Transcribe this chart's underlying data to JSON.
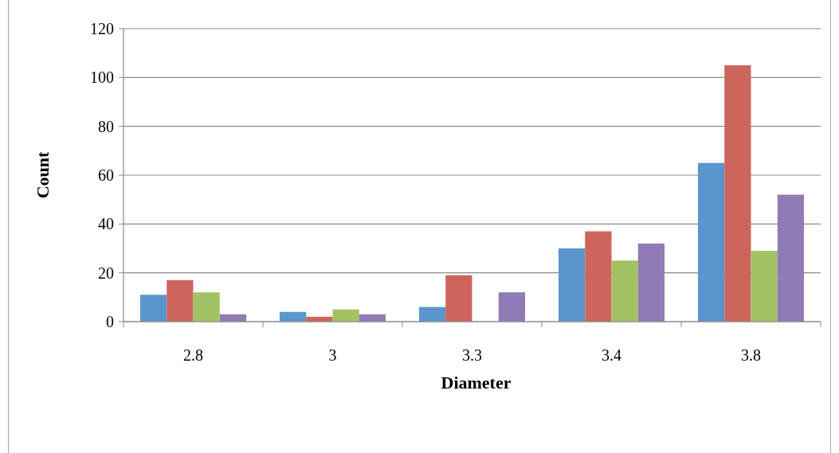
{
  "chart_data": {
    "type": "bar",
    "xlabel": "Diameter",
    "ylabel": "Count",
    "categories": [
      "2.8",
      "3",
      "3.3",
      "3.4",
      "3.8"
    ],
    "series": [
      {
        "color": "#5b95cd",
        "values": [
          11,
          4,
          6,
          30,
          65
        ]
      },
      {
        "color": "#cd655d",
        "values": [
          17,
          2,
          19,
          37,
          105
        ]
      },
      {
        "color": "#a2c264",
        "values": [
          12,
          5,
          null,
          25,
          29
        ]
      },
      {
        "color": "#917bb6",
        "values": [
          3,
          3,
          12,
          32,
          52
        ]
      }
    ],
    "ylim": [
      0,
      120
    ],
    "yticks": [
      0,
      20,
      40,
      60,
      80,
      100,
      120
    ],
    "grid": "y"
  }
}
